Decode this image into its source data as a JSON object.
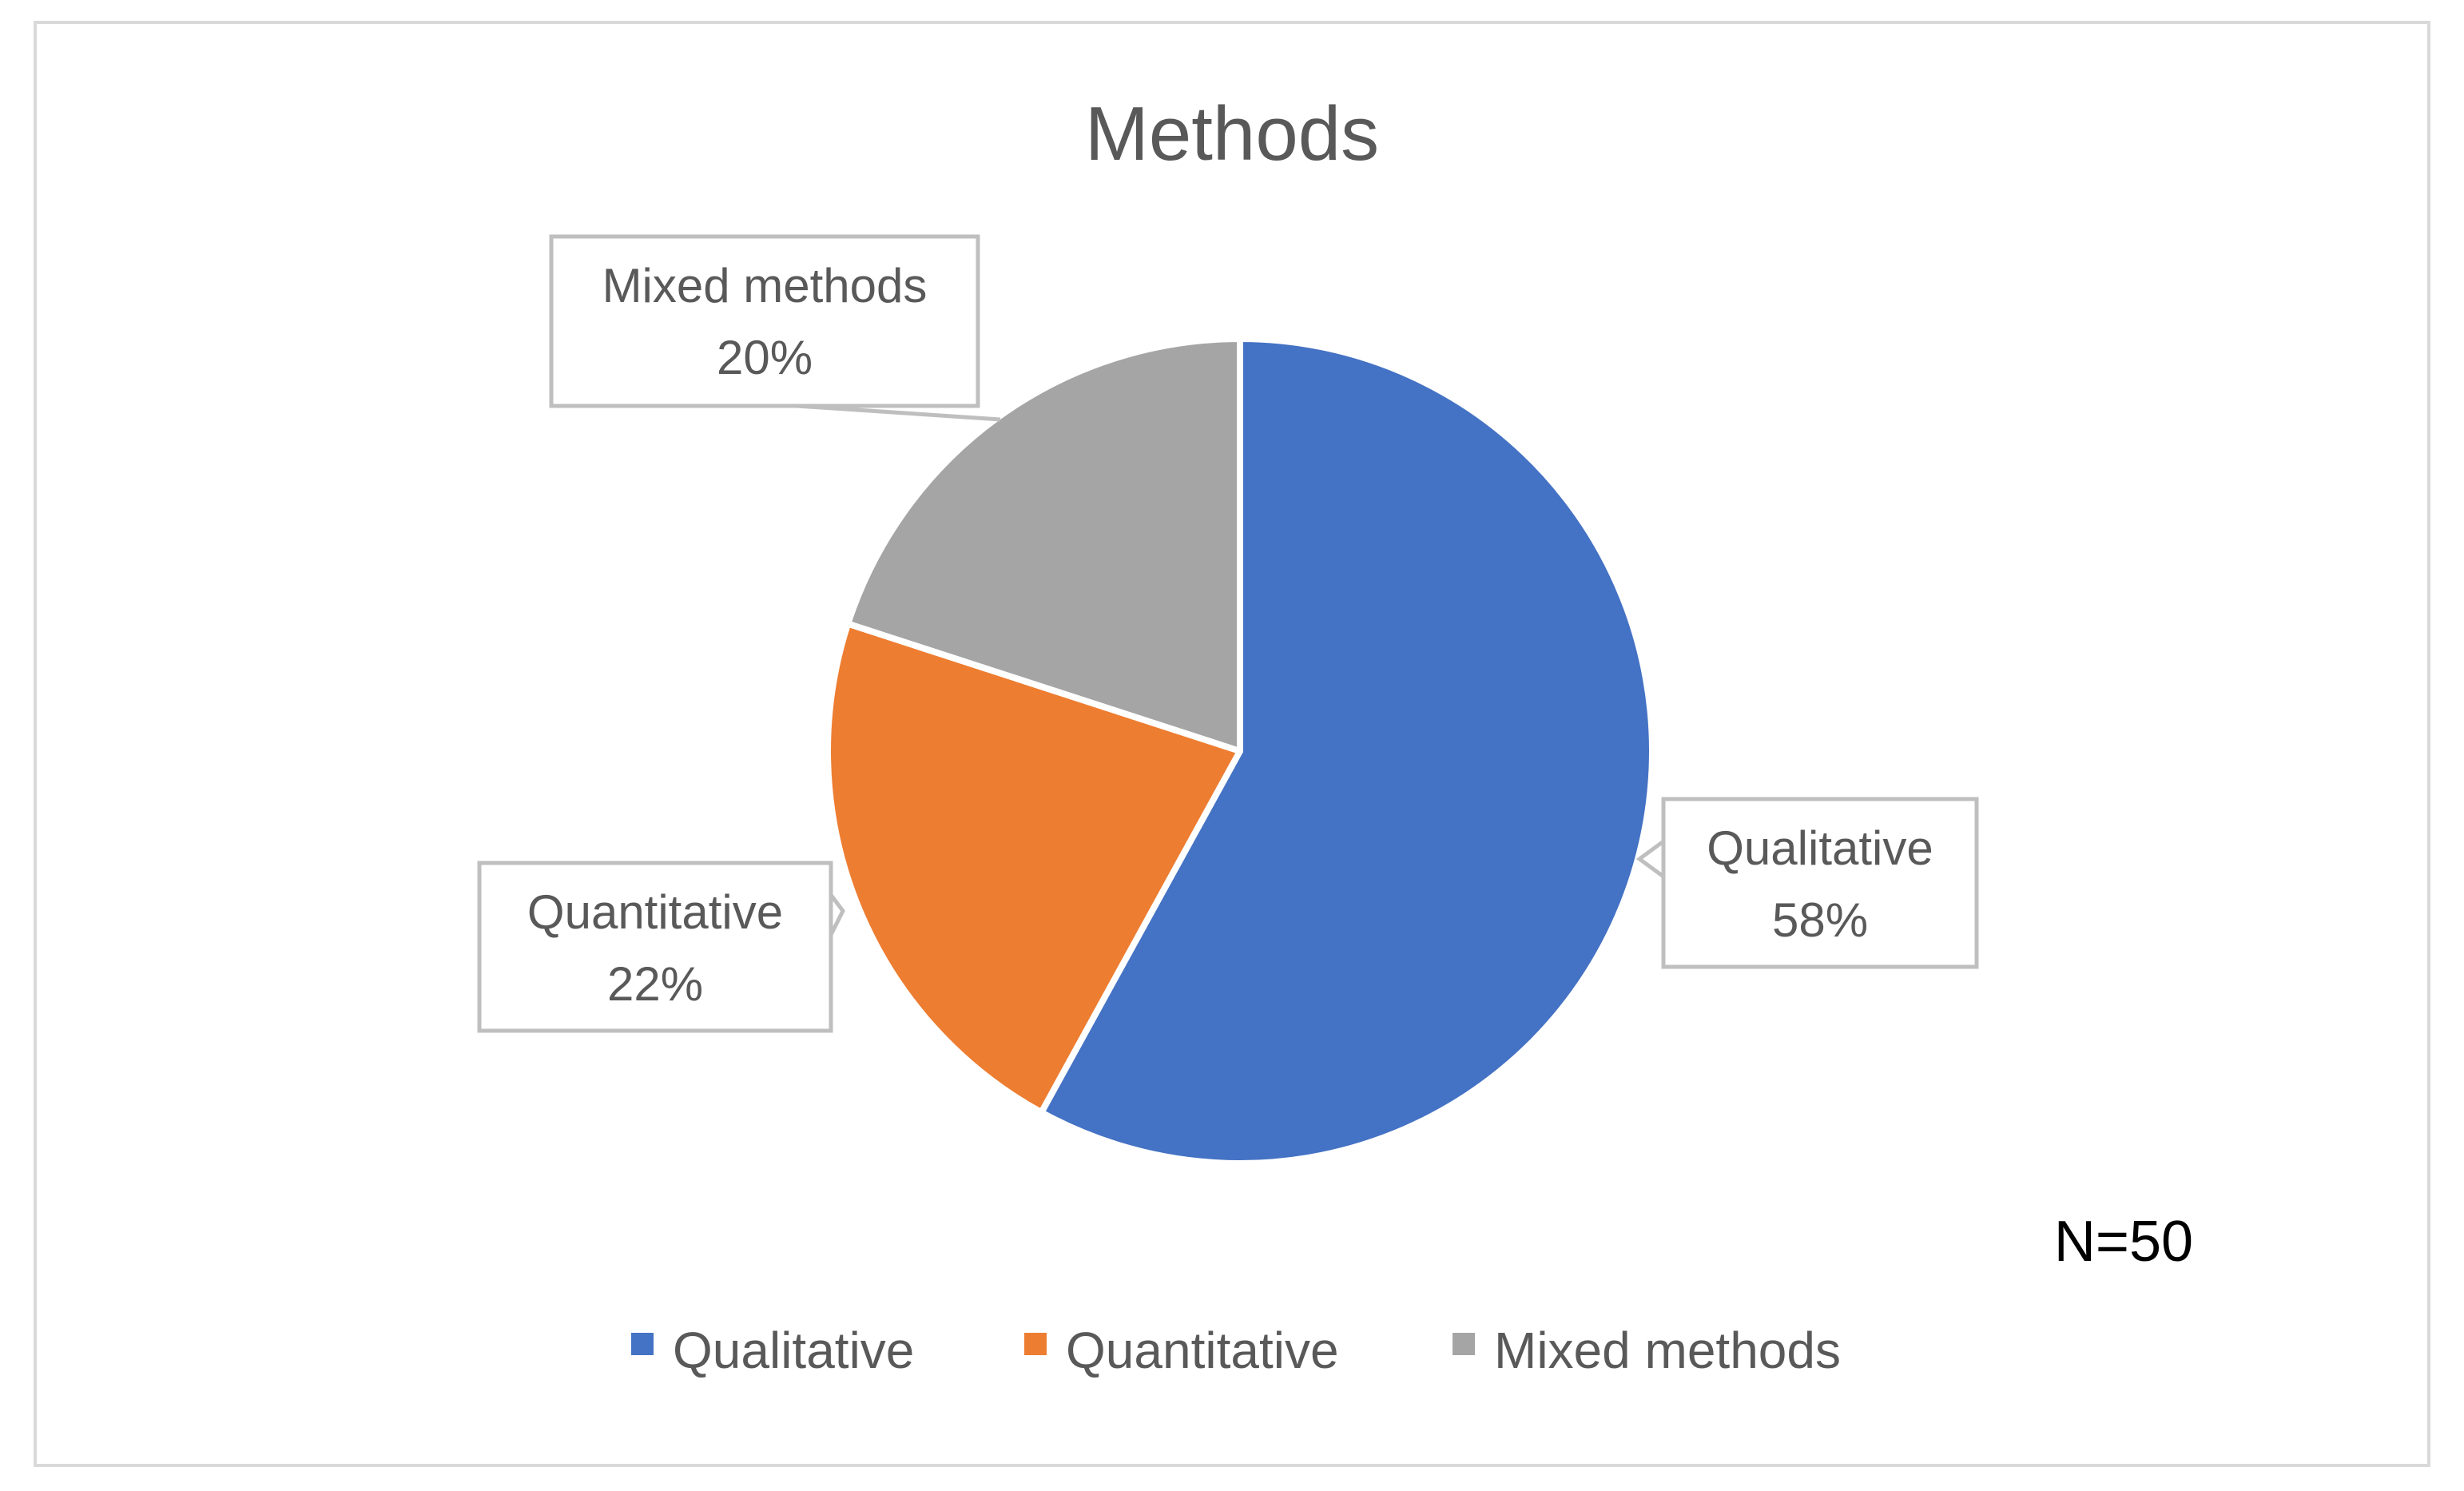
{
  "chart_data": {
    "type": "pie",
    "title": "Methods",
    "categories": [
      "Qualitative",
      "Quantitative",
      "Mixed methods"
    ],
    "values": [
      58,
      22,
      20
    ],
    "value_labels": [
      "58%",
      "22%",
      "20%"
    ],
    "colors": [
      "#4472c4",
      "#ed7d31",
      "#a5a5a5"
    ],
    "start": "12 o'clock",
    "direction": "clockwise",
    "legend": {
      "position": "bottom",
      "entries": [
        "Qualitative",
        "Quantitative",
        "Mixed methods"
      ]
    },
    "annotation": "N=50"
  }
}
